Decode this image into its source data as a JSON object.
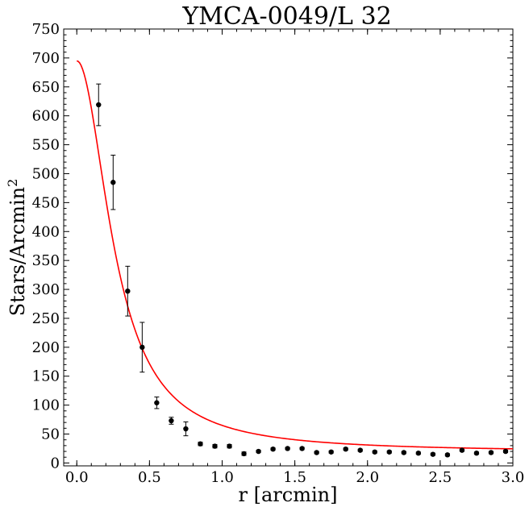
{
  "chart_data": {
    "type": "scatter",
    "title": "YMCA-0049/L 32",
    "xlabel": "r [arcmin]",
    "ylabel_main": "Stars/Arcmin",
    "ylabel_sup": "2",
    "xlim": [
      -0.09,
      3.0
    ],
    "ylim": [
      -5,
      750
    ],
    "xticks": [
      0.0,
      0.5,
      1.0,
      1.5,
      2.0,
      2.5,
      3.0
    ],
    "xtick_labels": [
      "0.0",
      "0.5",
      "1.0",
      "1.5",
      "2.0",
      "2.5",
      "3.0"
    ],
    "yticks": [
      0,
      50,
      100,
      150,
      200,
      250,
      300,
      350,
      400,
      450,
      500,
      550,
      600,
      650,
      700,
      750
    ],
    "ytick_labels": [
      "0",
      "50",
      "100",
      "150",
      "200",
      "250",
      "300",
      "350",
      "400",
      "450",
      "500",
      "550",
      "600",
      "650",
      "700",
      "750"
    ],
    "grid": false,
    "series": [
      {
        "kind": "errorbar",
        "color": "#000000",
        "x": [
          0.15,
          0.25,
          0.35,
          0.45,
          0.55,
          0.65,
          0.75,
          0.85,
          0.95,
          1.05,
          1.15,
          1.25,
          1.35,
          1.45,
          1.55,
          1.65,
          1.75,
          1.85,
          1.95,
          2.05,
          2.15,
          2.25,
          2.35,
          2.45,
          2.55,
          2.65,
          2.75,
          2.85,
          2.95
        ],
        "y": [
          619,
          485,
          297,
          200,
          104,
          73,
          59,
          33,
          29,
          29,
          16,
          20,
          24,
          25,
          25,
          18,
          19,
          24,
          22,
          19,
          19,
          18,
          17,
          15,
          14,
          22,
          17,
          18,
          20
        ],
        "err": [
          36,
          47,
          43,
          43,
          10,
          6,
          12,
          3,
          3,
          3,
          3,
          2,
          2,
          2,
          2,
          2,
          2,
          2,
          2,
          2,
          2,
          2,
          2,
          2,
          2,
          2,
          2,
          2,
          2
        ]
      },
      {
        "kind": "fit",
        "color": "#ff0000",
        "model": "king",
        "background": 19,
        "peak": 676,
        "core_radius": 0.27
      }
    ]
  }
}
